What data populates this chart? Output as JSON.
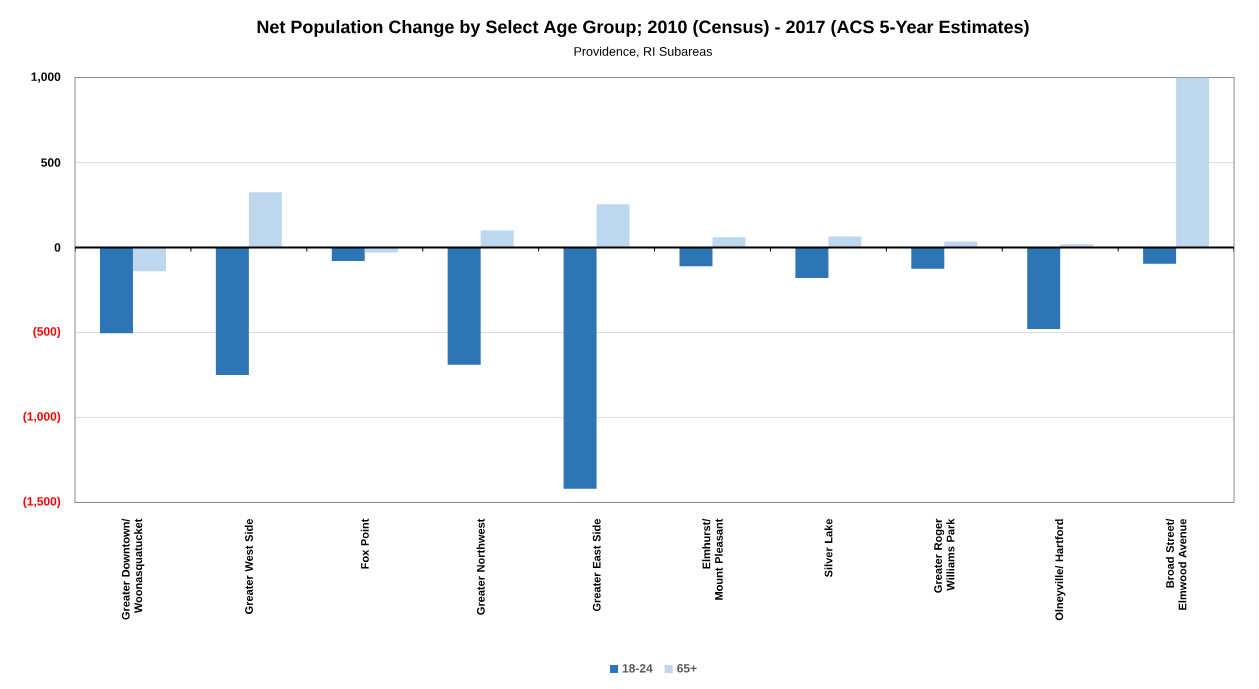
{
  "chart_data": {
    "type": "bar",
    "title": "Net Population Change by Select Age Group; 2010 (Census) - 2017 (ACS 5-Year Estimates)",
    "subtitle": "Providence, RI Subareas",
    "categories": [
      "Greater Downtown/ Woonasquatucket",
      "Greater West Side",
      "Fox Point",
      "Greater Northwest",
      "Greater East Side",
      "Elmhurst/ Mount Pleasant",
      "Silver Lake",
      "Greater Roger Williams Park",
      "Olneyville/ Hartford",
      "Broad Street/ Elmwood Avenue"
    ],
    "series": [
      {
        "name": "18-24",
        "color": "#2e75b6",
        "values": [
          -505,
          -750,
          -80,
          -690,
          -1420,
          -110,
          -180,
          -125,
          -480,
          -95
        ]
      },
      {
        "name": "65+",
        "color": "#bdd7ee",
        "values": [
          -140,
          325,
          -30,
          100,
          255,
          60,
          65,
          35,
          20,
          1000
        ]
      }
    ],
    "ylim": [
      -1500,
      1000
    ],
    "yticks": [
      {
        "value": 1000,
        "label": "1,000"
      },
      {
        "value": 500,
        "label": "500"
      },
      {
        "value": 0,
        "label": "0"
      },
      {
        "value": -500,
        "label": "(500)"
      },
      {
        "value": -1000,
        "label": "(1,000)"
      },
      {
        "value": -1500,
        "label": "(1,500)"
      }
    ],
    "grid": "y",
    "legend": "bottom"
  }
}
